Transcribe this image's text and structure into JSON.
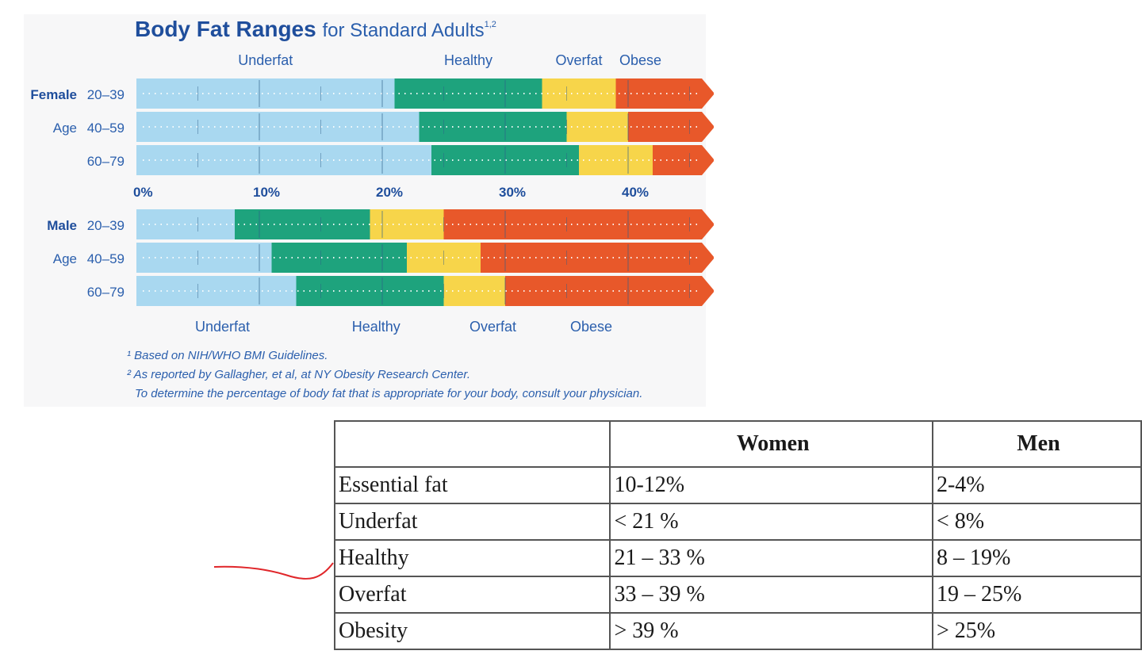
{
  "chart_data": {
    "type": "bar",
    "title": "Body Fat Ranges",
    "title_suffix": "for Standard Adults",
    "title_superscript": "1,2",
    "x_axis": {
      "unit": "percent",
      "range": [
        0,
        46
      ],
      "tick_values": [
        0,
        10,
        20,
        30,
        40
      ],
      "tick_labels": [
        "0%",
        "10%",
        "20%",
        "30%",
        "40%"
      ]
    },
    "categories_top": [
      "Underfat",
      "Healthy",
      "Overfat",
      "Obese"
    ],
    "categories_bottom": [
      "Underfat",
      "Healthy",
      "Overfat",
      "Obese"
    ],
    "colors": {
      "Underfat": "#a9d8f0",
      "Healthy": "#1ea37d",
      "Overfat": "#f7d54a",
      "Obese": "#e8582a"
    },
    "groups": [
      {
        "name": "Female",
        "rows": [
          {
            "prefix": "Female",
            "age": "20–39",
            "boundaries": [
              21,
              33,
              39
            ]
          },
          {
            "prefix": "Age",
            "age": "40–59",
            "boundaries": [
              23,
              35,
              40
            ]
          },
          {
            "prefix": "",
            "age": "60–79",
            "boundaries": [
              24,
              36,
              42
            ]
          }
        ]
      },
      {
        "name": "Male",
        "rows": [
          {
            "prefix": "Male",
            "age": "20–39",
            "boundaries": [
              8,
              19,
              25
            ]
          },
          {
            "prefix": "Age",
            "age": "40–59",
            "boundaries": [
              11,
              22,
              28
            ]
          },
          {
            "prefix": "",
            "age": "60–79",
            "boundaries": [
              13,
              25,
              30
            ]
          }
        ]
      }
    ],
    "footnotes": [
      "¹ Based on NIH/WHO BMI Guidelines.",
      "² As reported by Gallagher, et al, at NY Obesity Research Center.",
      "To determine the percentage of body fat that is appropriate for your body, consult your physician."
    ]
  },
  "table": {
    "headers": [
      "",
      "Women",
      "Men"
    ],
    "rows": [
      [
        "Essential fat",
        "10-12%",
        "2-4%"
      ],
      [
        "Underfat",
        "< 21 %",
        "< 8%"
      ],
      [
        "Healthy",
        "21 – 33 %",
        "8 – 19%"
      ],
      [
        "Overfat",
        "33 – 39 %",
        "19 – 25%"
      ],
      [
        "Obesity",
        "> 39 %",
        "> 25%"
      ]
    ]
  },
  "annotation": {
    "color": "#e0262a"
  }
}
